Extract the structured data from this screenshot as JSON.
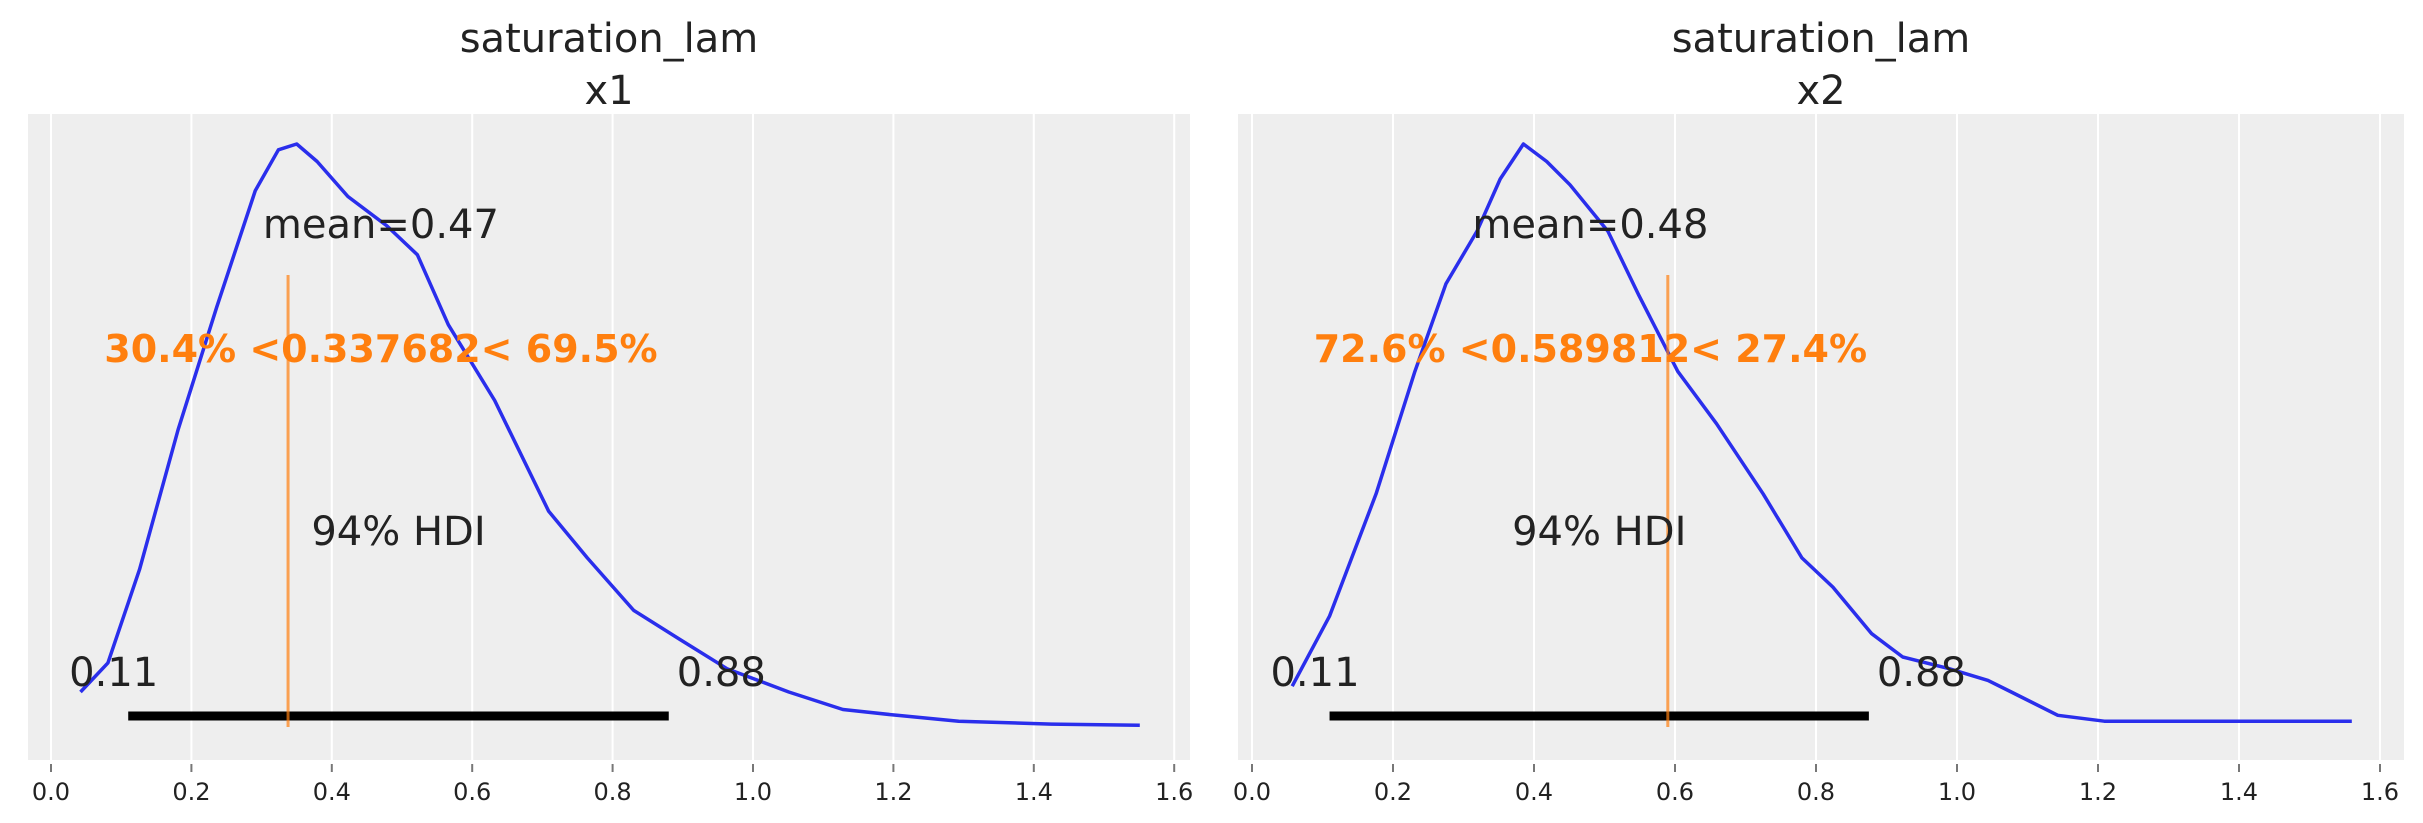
{
  "chart_data": [
    {
      "type": "line",
      "title": [
        "saturation_lam",
        "x1"
      ],
      "xlim": [
        -0.03,
        1.62
      ],
      "xticks": [
        "0.0",
        "0.2",
        "0.4",
        "0.6",
        "0.8",
        "1.0",
        "1.2",
        "1.4",
        "1.6"
      ],
      "grid": true,
      "background": "#eeeeee",
      "curve_color": "#2a2eec",
      "ref_color": "#ff7f0e",
      "x": [
        0.042,
        0.081,
        0.126,
        0.181,
        0.236,
        0.291,
        0.324,
        0.35,
        0.379,
        0.423,
        0.478,
        0.522,
        0.566,
        0.632,
        0.709,
        0.764,
        0.83,
        0.896,
        0.963,
        1.051,
        1.128,
        1.205,
        1.293,
        1.425,
        1.551
      ],
      "y": [
        0.06,
        0.11,
        0.27,
        0.51,
        0.72,
        0.92,
        0.99,
        1.0,
        0.97,
        0.91,
        0.86,
        0.81,
        0.69,
        0.56,
        0.37,
        0.29,
        0.2,
        0.15,
        0.1,
        0.06,
        0.03,
        0.02,
        0.01,
        0.005,
        0.003
      ],
      "mean": 0.47,
      "mean_label": "mean=0.47",
      "ref_val": 0.337682,
      "ref_label": "30.4% <0.337682< 69.5%",
      "hdi": [
        0.11,
        0.88
      ],
      "hdi_low_label": "0.11",
      "hdi_high_label": "0.88",
      "hdi_label": "94% HDI"
    },
    {
      "type": "line",
      "title": [
        "saturation_lam",
        "x2"
      ],
      "xlim": [
        -0.03,
        1.62
      ],
      "xticks": [
        "0.0",
        "0.2",
        "0.4",
        "0.6",
        "0.8",
        "1.0",
        "1.2",
        "1.4",
        "1.6"
      ],
      "grid": true,
      "background": "#eeeeee",
      "curve_color": "#2a2eec",
      "ref_color": "#ff7f0e",
      "x": [
        0.057,
        0.11,
        0.176,
        0.231,
        0.275,
        0.319,
        0.352,
        0.385,
        0.418,
        0.451,
        0.505,
        0.549,
        0.604,
        0.659,
        0.725,
        0.78,
        0.824,
        0.879,
        0.923,
        0.989,
        1.044,
        1.077,
        1.143,
        1.209,
        1.297,
        1.363,
        1.429,
        1.56
      ],
      "y": [
        0.07,
        0.19,
        0.4,
        0.61,
        0.76,
        0.85,
        0.94,
        1.0,
        0.97,
        0.93,
        0.85,
        0.74,
        0.61,
        0.52,
        0.4,
        0.29,
        0.24,
        0.16,
        0.12,
        0.1,
        0.08,
        0.06,
        0.02,
        0.01,
        0.01,
        0.01,
        0.01,
        0.01
      ],
      "mean": 0.48,
      "mean_label": "mean=0.48",
      "ref_val": 0.589812,
      "ref_label": "72.6% <0.589812< 27.4%",
      "hdi": [
        0.11,
        0.875
      ],
      "hdi_low_label": "0.11",
      "hdi_high_label": "0.88",
      "hdi_label": "94% HDI"
    }
  ]
}
